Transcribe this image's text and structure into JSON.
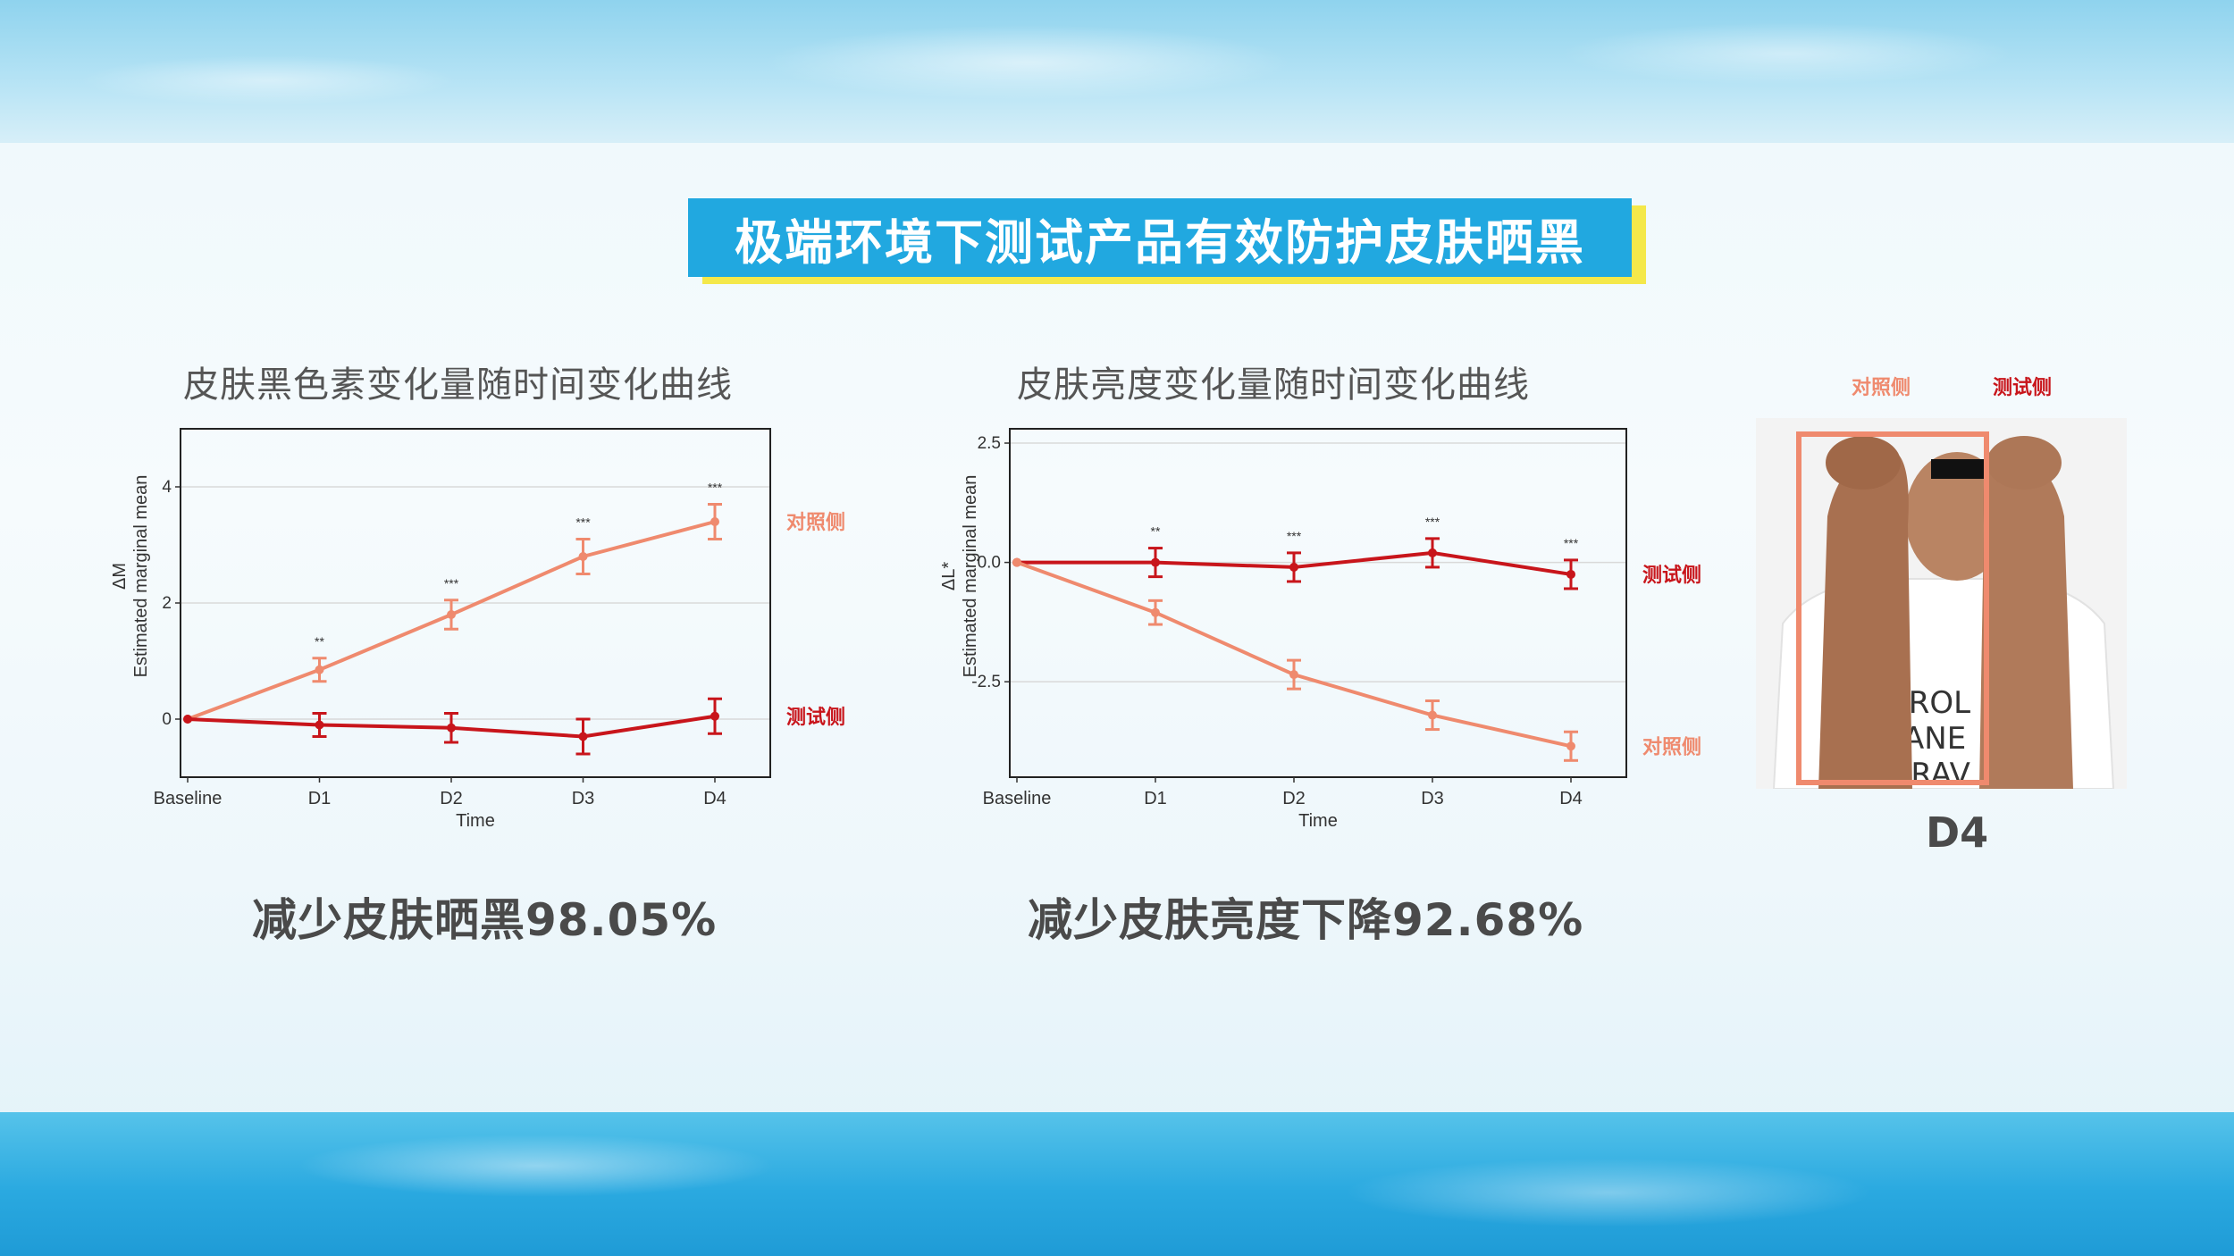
{
  "page": {
    "title": "极端环境下测试产品有效防护皮肤晒黑",
    "colors": {
      "title_bg": "#21a8e0",
      "title_shadow": "#f4e84a",
      "control": "#ef8a6e",
      "test": "#c8151b"
    }
  },
  "left": {
    "title": "皮肤黑色素变化量随时间变化曲线",
    "stat": "减少皮肤晒黑98.05%"
  },
  "right": {
    "title": "皮肤亮度变化量随时间变化曲线",
    "stat": "减少皮肤亮度下降92.68%"
  },
  "photo": {
    "label_control": "对照侧",
    "label_test": "测试侧",
    "caption": "D4",
    "icon": "forearm-photo-icon"
  },
  "chart_data": [
    {
      "type": "line",
      "categories": [
        "Baseline",
        "D1",
        "D2",
        "D3",
        "D4"
      ],
      "xlabel": "Time",
      "ylabel": "Estimated marginal mean",
      "ysymbol": "ΔM",
      "ylim": [
        -1,
        5
      ],
      "yticks": [
        0,
        2,
        4
      ],
      "grid": true,
      "significance": [
        "",
        "**",
        "***",
        "***",
        "***"
      ],
      "series": [
        {
          "name": "对照侧",
          "color": "#ef8a6e",
          "values": [
            0,
            0.85,
            1.8,
            2.8,
            3.4
          ],
          "err": [
            0,
            0.2,
            0.25,
            0.3,
            0.3
          ]
        },
        {
          "name": "测试侧",
          "color": "#c8151b",
          "values": [
            0,
            -0.1,
            -0.15,
            -0.3,
            0.05
          ],
          "err": [
            0,
            0.2,
            0.25,
            0.3,
            0.3
          ]
        }
      ]
    },
    {
      "type": "line",
      "categories": [
        "Baseline",
        "D1",
        "D2",
        "D3",
        "D4"
      ],
      "xlabel": "Time",
      "ylabel": "Estimated marginal mean",
      "ysymbol": "ΔL*",
      "ylim": [
        -4.5,
        2.8
      ],
      "yticks": [
        2.5,
        0.0,
        -2.5
      ],
      "ytick_labels": [
        "2.5",
        "0.0",
        "-2.5"
      ],
      "grid": true,
      "significance": [
        "",
        "**",
        "***",
        "***",
        "***"
      ],
      "series": [
        {
          "name": "测试侧",
          "color": "#c8151b",
          "values": [
            0,
            0,
            -0.1,
            0.2,
            -0.25
          ],
          "err": [
            0,
            0.3,
            0.3,
            0.3,
            0.3
          ]
        },
        {
          "name": "对照侧",
          "color": "#ef8a6e",
          "values": [
            0,
            -1.05,
            -2.35,
            -3.2,
            -3.85
          ],
          "err": [
            0,
            0.25,
            0.3,
            0.3,
            0.3
          ]
        }
      ]
    }
  ]
}
